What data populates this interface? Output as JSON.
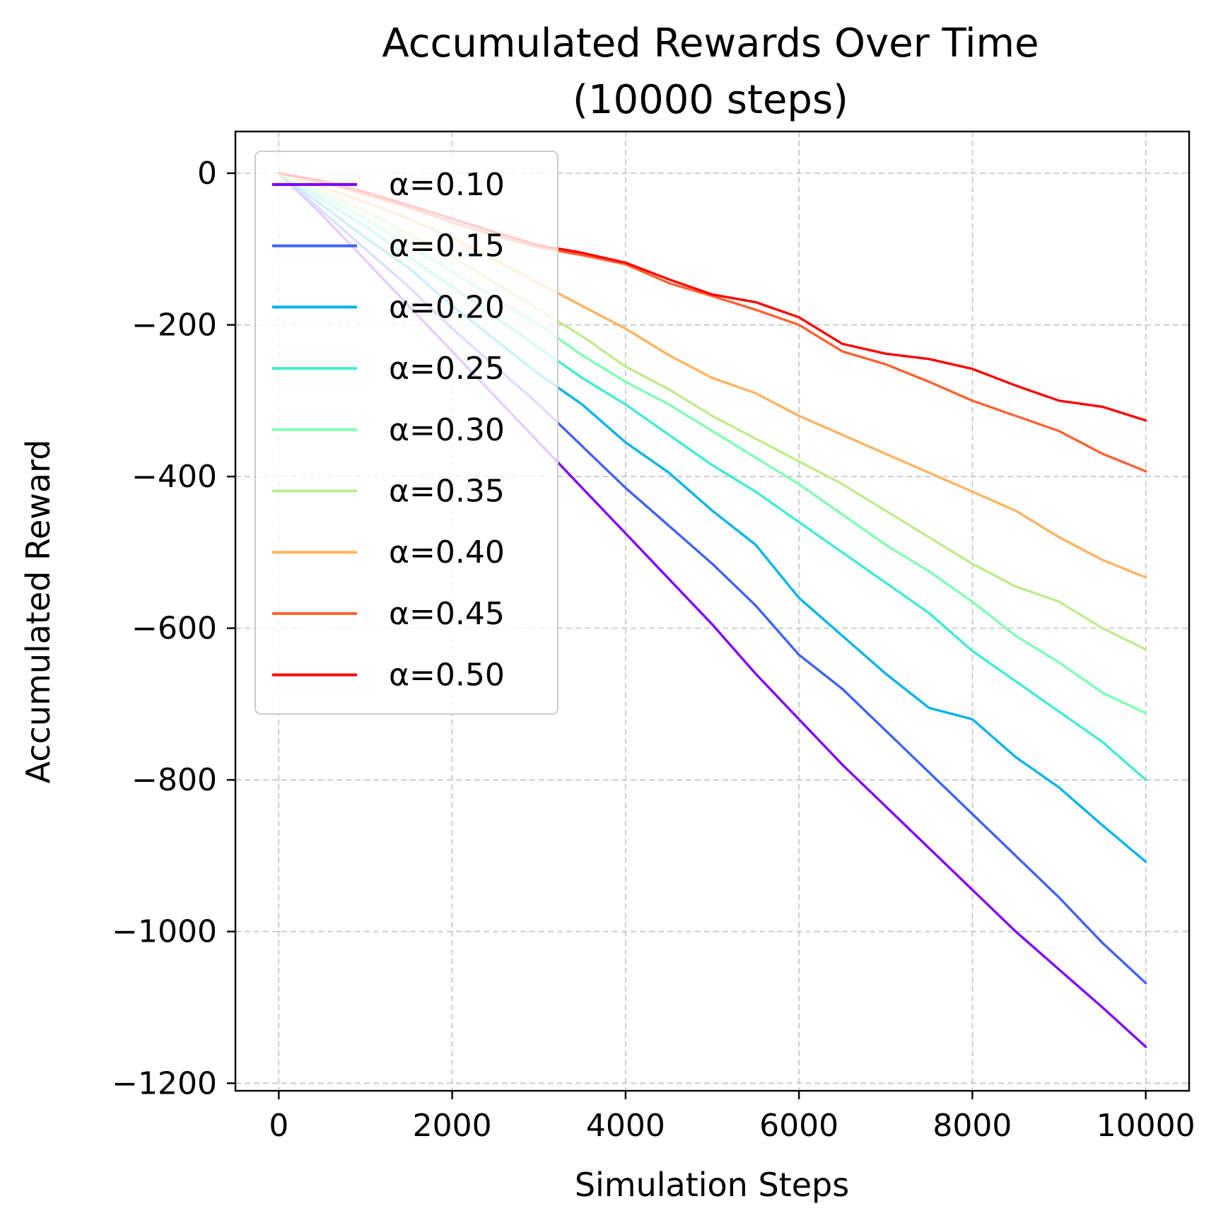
{
  "chart_data": {
    "type": "line",
    "title_lines": [
      "Accumulated Rewards Over Time",
      "(10000 steps)"
    ],
    "xlabel": "Simulation Steps",
    "ylabel": "Accumulated Reward",
    "xlim": [
      -500,
      10500
    ],
    "ylim": [
      -1210,
      55
    ],
    "xticks": [
      0,
      2000,
      4000,
      6000,
      8000,
      10000
    ],
    "xtick_labels": [
      "0",
      "2000",
      "4000",
      "6000",
      "8000",
      "10000"
    ],
    "yticks": [
      0,
      -200,
      -400,
      -600,
      -800,
      -1000,
      -1200
    ],
    "ytick_labels": [
      "0",
      "−200",
      "−400",
      "−600",
      "−800",
      "−1000",
      "−1200"
    ],
    "grid": true,
    "legend_position": "upper-left",
    "x": [
      0,
      500,
      1000,
      1500,
      2000,
      2500,
      3000,
      3500,
      4000,
      4500,
      5000,
      5500,
      6000,
      6500,
      7000,
      7500,
      8000,
      8500,
      9000,
      9500,
      10000
    ],
    "series": [
      {
        "name": "α=0.10",
        "color": "#8000ff",
        "values": [
          0,
          -55,
          -115,
          -175,
          -235,
          -295,
          -355,
          -415,
          -475,
          -535,
          -595,
          -660,
          -720,
          -780,
          -835,
          -890,
          -945,
          -1000,
          -1050,
          -1100,
          -1152
        ]
      },
      {
        "name": "α=0.15",
        "color": "#4062fa",
        "values": [
          0,
          -50,
          -100,
          -150,
          -205,
          -255,
          -305,
          -360,
          -415,
          -465,
          -515,
          -570,
          -635,
          -680,
          -735,
          -790,
          -845,
          -900,
          -955,
          -1015,
          -1068
        ]
      },
      {
        "name": "α=0.20",
        "color": "#00b4ec",
        "values": [
          0,
          -42,
          -85,
          -125,
          -175,
          -220,
          -265,
          -305,
          -355,
          -395,
          -445,
          -490,
          -560,
          -610,
          -660,
          -705,
          -720,
          -770,
          -810,
          -860,
          -908
        ]
      },
      {
        "name": "α=0.25",
        "color": "#40ecd4",
        "values": [
          0,
          -35,
          -70,
          -110,
          -150,
          -190,
          -230,
          -270,
          -305,
          -345,
          -385,
          -420,
          -460,
          -500,
          -540,
          -580,
          -630,
          -670,
          -710,
          -750,
          -800
        ]
      },
      {
        "name": "α=0.30",
        "color": "#80ffb4",
        "values": [
          0,
          -30,
          -60,
          -95,
          -130,
          -165,
          -200,
          -240,
          -275,
          -305,
          -340,
          -375,
          -410,
          -450,
          -490,
          -525,
          -565,
          -610,
          -645,
          -685,
          -712
        ]
      },
      {
        "name": "α=0.35",
        "color": "#c0eb8d",
        "values": [
          0,
          -25,
          -50,
          -80,
          -110,
          -145,
          -180,
          -215,
          -255,
          -285,
          -320,
          -350,
          -380,
          -410,
          -445,
          -480,
          -515,
          -545,
          -565,
          -600,
          -628
        ]
      },
      {
        "name": "α=0.40",
        "color": "#ffb360",
        "values": [
          0,
          -18,
          -38,
          -60,
          -85,
          -115,
          -145,
          -175,
          -205,
          -240,
          -270,
          -290,
          -320,
          -345,
          -370,
          -395,
          -420,
          -445,
          -480,
          -510,
          -533
        ]
      },
      {
        "name": "α=0.45",
        "color": "#ff6130",
        "values": [
          0,
          -12,
          -28,
          -45,
          -65,
          -82,
          -98,
          -108,
          -120,
          -145,
          -162,
          -180,
          -200,
          -235,
          -252,
          -275,
          -300,
          -320,
          -340,
          -370,
          -393
        ]
      },
      {
        "name": "α=0.50",
        "color": "#ff0000",
        "values": [
          0,
          -10,
          -25,
          -42,
          -60,
          -78,
          -95,
          -105,
          -118,
          -140,
          -160,
          -170,
          -190,
          -225,
          -238,
          -245,
          -258,
          -280,
          -300,
          -308,
          -326
        ]
      }
    ]
  }
}
